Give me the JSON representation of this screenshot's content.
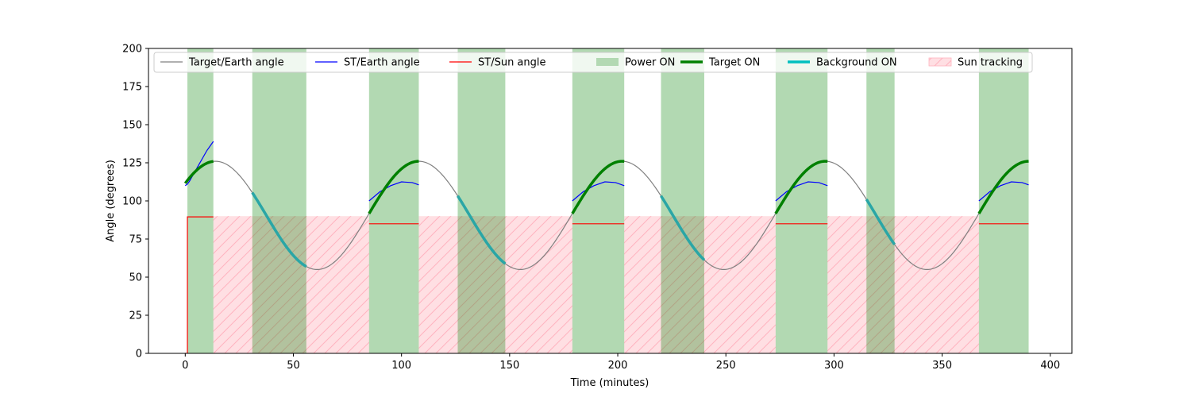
{
  "chart_data": {
    "type": "line",
    "title": "",
    "xlabel": "Time (minutes)",
    "ylabel": "Angle (degrees)",
    "xlim": [
      -17,
      410
    ],
    "ylim": [
      0,
      200
    ],
    "xticks": [
      0,
      50,
      100,
      150,
      200,
      250,
      300,
      350,
      400
    ],
    "yticks": [
      0,
      25,
      50,
      75,
      100,
      125,
      150,
      175,
      200
    ],
    "grid": false,
    "legend_position": "top",
    "legend": [
      {
        "label": "Target/Earth angle",
        "style": "line",
        "color": "#808080"
      },
      {
        "label": "ST/Earth angle",
        "style": "line",
        "color": "#0000ff"
      },
      {
        "label": "ST/Sun angle",
        "style": "line",
        "color": "#ff0000"
      },
      {
        "label": "Power ON",
        "style": "patch",
        "color": "#b3d9b3"
      },
      {
        "label": "Target ON",
        "style": "thickline",
        "color": "#008000"
      },
      {
        "label": "Background ON",
        "style": "thickline",
        "color": "#00bfbf"
      },
      {
        "label": "Sun tracking",
        "style": "hatch",
        "color": "#ffdfe3"
      }
    ],
    "colors": {
      "target_earth": "#808080",
      "st_earth": "#0000ff",
      "st_sun": "#ff0000",
      "power_on": "#b3d9b3",
      "target_on": "#008000",
      "background_on": "#2aa6a6",
      "sun_tracking": "#ffdfe3",
      "sun_hatch": "#ffb3bf"
    },
    "orbit_period_min": 94,
    "target_earth_model": {
      "mean": 90.5,
      "amplitude": 35.5,
      "phase_ref_min": 14
    },
    "series": [
      {
        "name": "Target/Earth angle",
        "x_range": [
          0,
          390
        ]
      },
      {
        "name": "ST/Earth angle",
        "segments": [
          {
            "x": [
              0,
              1,
              2,
              4,
              6,
              8,
              10,
              13
            ],
            "y": [
              110,
              111,
              113,
              118,
              123,
              128,
              133,
              139
            ]
          },
          {
            "x": [
              85,
              90,
              95,
              100,
              105,
              108
            ],
            "y": [
              100,
              106,
              110,
              112.5,
              112,
              110.5
            ]
          },
          {
            "x": [
              179,
              184,
              189,
              194,
              199,
              203
            ],
            "y": [
              100,
              106,
              110,
              112.5,
              112,
              110
            ]
          },
          {
            "x": [
              273,
              278,
              283,
              288,
              293,
              297
            ],
            "y": [
              100,
              106,
              110,
              112.5,
              112,
              110
            ]
          },
          {
            "x": [
              367,
              372,
              377,
              382,
              387,
              390
            ],
            "y": [
              100,
              106,
              110,
              112.5,
              112,
              110.5
            ]
          }
        ]
      },
      {
        "name": "ST/Sun angle",
        "segments": [
          {
            "x": [
              0,
              1,
              1,
              13
            ],
            "y": [
              0,
              0,
              89.5,
              89.5
            ]
          },
          {
            "x": [
              85,
              108
            ],
            "y": [
              85,
              85
            ]
          },
          {
            "x": [
              179,
              203
            ],
            "y": [
              85,
              85
            ]
          },
          {
            "x": [
              273,
              297
            ],
            "y": [
              85,
              85
            ]
          },
          {
            "x": [
              367,
              390
            ],
            "y": [
              85,
              85
            ]
          }
        ]
      }
    ],
    "power_on_intervals": [
      [
        1,
        13
      ],
      [
        31,
        56
      ],
      [
        85,
        108
      ],
      [
        126,
        148
      ],
      [
        179,
        203
      ],
      [
        220,
        240
      ],
      [
        273,
        297
      ],
      [
        315,
        328
      ],
      [
        367,
        390
      ]
    ],
    "target_on_intervals": [
      [
        0,
        13
      ],
      [
        85,
        108
      ],
      [
        179,
        203
      ],
      [
        273,
        297
      ],
      [
        367,
        390
      ]
    ],
    "background_on_intervals": [
      [
        31,
        56
      ],
      [
        126,
        148
      ],
      [
        220,
        240
      ],
      [
        315,
        328
      ]
    ],
    "sun_tracking_intervals": [
      [
        13,
        85
      ],
      [
        108,
        179
      ],
      [
        203,
        273
      ],
      [
        297,
        367
      ]
    ],
    "sun_tracking_top": 90
  }
}
